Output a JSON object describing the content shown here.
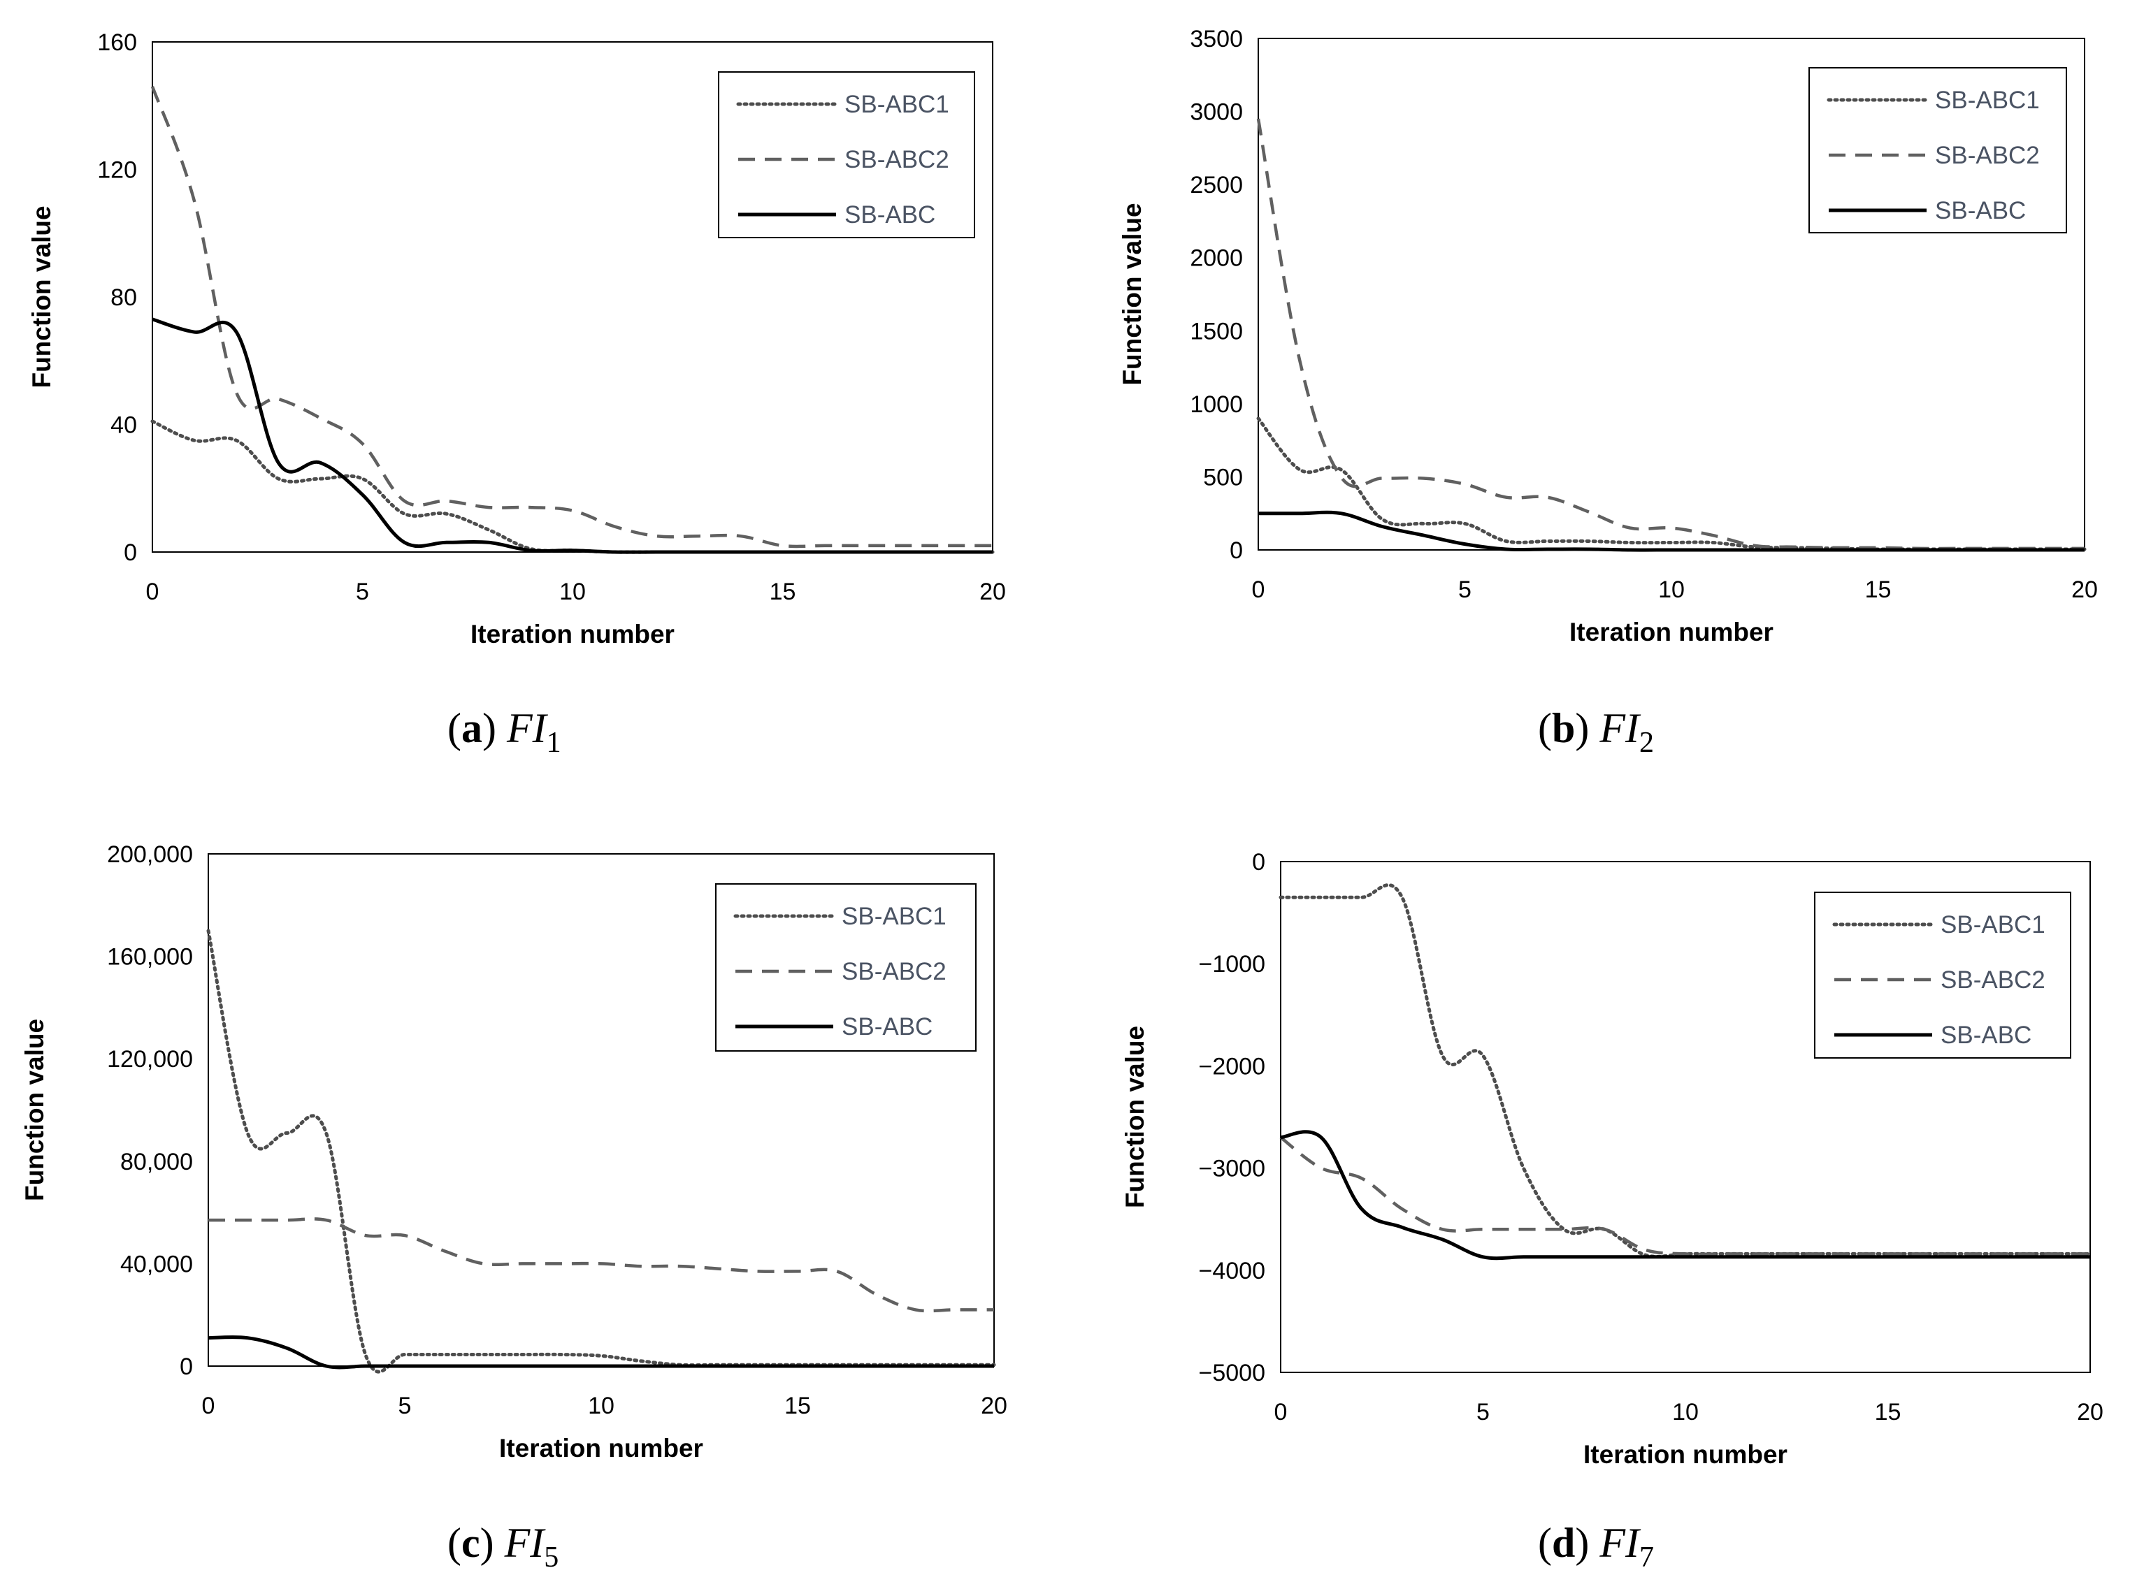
{
  "series_styles": {
    "SB-ABC1": {
      "color": "#4d4d4d",
      "dash": "dotted"
    },
    "SB-ABC2": {
      "color": "#606060",
      "dash": "dashed"
    },
    "SB-ABC": {
      "color": "#000000",
      "dash": "solid"
    }
  },
  "chart_data": [
    {
      "type": "line",
      "caption": {
        "letter": "a",
        "fn": "FI",
        "sub": "1"
      },
      "xlabel": "Iteration number",
      "ylabel": "Function value",
      "xlim": [
        0,
        20
      ],
      "ylim": [
        0,
        160
      ],
      "xticks": [
        0,
        5,
        10,
        15,
        20
      ],
      "xtick_labels": [
        "0",
        "5",
        "10",
        "15",
        "20"
      ],
      "yticks": [
        0,
        40,
        80,
        120,
        160
      ],
      "ytick_labels": [
        "0",
        "40",
        "80",
        "120",
        "160"
      ],
      "legend": [
        "SB-ABC1",
        "SB-ABC2",
        "SB-ABC"
      ],
      "legend_position": "top-right",
      "series": [
        {
          "name": "SB-ABC1",
          "x": [
            0,
            1,
            2,
            3,
            4,
            5,
            6,
            7,
            8,
            9,
            10,
            11,
            12,
            13,
            14,
            15,
            16,
            17,
            18,
            19,
            20
          ],
          "values": [
            41,
            35,
            35,
            23,
            23,
            23,
            12,
            12,
            7,
            1,
            0.5,
            0,
            0,
            0,
            0,
            0,
            0,
            0,
            0,
            0,
            0
          ]
        },
        {
          "name": "SB-ABC2",
          "x": [
            0,
            1,
            2,
            3,
            4,
            5,
            6,
            7,
            8,
            9,
            10,
            11,
            12,
            13,
            14,
            15,
            16,
            17,
            18,
            19,
            20
          ],
          "values": [
            146,
            110,
            50,
            48,
            42,
            34,
            16,
            16,
            14,
            14,
            13,
            8,
            5,
            5,
            5,
            2,
            2,
            2,
            2,
            2,
            2
          ]
        },
        {
          "name": "SB-ABC",
          "x": [
            0,
            1,
            2,
            3,
            4,
            5,
            6,
            7,
            8,
            9,
            10,
            11,
            12,
            13,
            14,
            15,
            16,
            17,
            18,
            19,
            20
          ],
          "values": [
            73,
            69,
            69,
            28,
            28,
            18,
            3,
            3,
            3,
            0.5,
            0.5,
            0,
            0,
            0,
            0,
            0,
            0,
            0,
            0,
            0,
            0
          ]
        }
      ]
    },
    {
      "type": "line",
      "caption": {
        "letter": "b",
        "fn": "FI",
        "sub": "2"
      },
      "xlabel": "Iteration number",
      "ylabel": "Function value",
      "xlim": [
        0,
        20
      ],
      "ylim": [
        0,
        3500
      ],
      "xticks": [
        0,
        5,
        10,
        15,
        20
      ],
      "xtick_labels": [
        "0",
        "5",
        "10",
        "15",
        "20"
      ],
      "yticks": [
        0,
        500,
        1000,
        1500,
        2000,
        2500,
        3000,
        3500
      ],
      "ytick_labels": [
        "0",
        "500",
        "1000",
        "1500",
        "2000",
        "2500",
        "3000",
        "3500"
      ],
      "legend": [
        "SB-ABC1",
        "SB-ABC2",
        "SB-ABC"
      ],
      "legend_position": "top-right",
      "series": [
        {
          "name": "SB-ABC1",
          "x": [
            0,
            1,
            2,
            3,
            4,
            5,
            6,
            7,
            8,
            9,
            10,
            11,
            12,
            13,
            14,
            15,
            16,
            17,
            18,
            19,
            20
          ],
          "values": [
            900,
            550,
            550,
            210,
            180,
            180,
            60,
            60,
            60,
            50,
            50,
            50,
            20,
            15,
            10,
            5,
            5,
            5,
            5,
            5,
            5
          ]
        },
        {
          "name": "SB-ABC2",
          "x": [
            0,
            1,
            2,
            3,
            4,
            5,
            6,
            7,
            8,
            9,
            10,
            11,
            12,
            13,
            14,
            15,
            16,
            17,
            18,
            19,
            20
          ],
          "values": [
            2950,
            1300,
            500,
            490,
            490,
            450,
            360,
            360,
            260,
            150,
            150,
            100,
            30,
            20,
            15,
            15,
            10,
            10,
            10,
            10,
            10
          ]
        },
        {
          "name": "SB-ABC",
          "x": [
            0,
            1,
            2,
            3,
            4,
            5,
            6,
            7,
            8,
            9,
            10,
            11,
            12,
            13,
            14,
            15,
            16,
            17,
            18,
            19,
            20
          ],
          "values": [
            250,
            250,
            250,
            160,
            100,
            40,
            5,
            5,
            5,
            0,
            0,
            0,
            0,
            0,
            0,
            0,
            0,
            0,
            0,
            0,
            0
          ]
        }
      ]
    },
    {
      "type": "line",
      "caption": {
        "letter": "c",
        "fn": "FI",
        "sub": "5"
      },
      "xlabel": "Iteration number",
      "ylabel": "Function value",
      "xlim": [
        0,
        20
      ],
      "ylim": [
        0,
        200000
      ],
      "xticks": [
        0,
        5,
        10,
        15,
        20
      ],
      "xtick_labels": [
        "0",
        "5",
        "10",
        "15",
        "20"
      ],
      "yticks": [
        0,
        40000,
        80000,
        120000,
        160000,
        200000
      ],
      "ytick_labels": [
        "0",
        "40,000",
        "80,000",
        "120,000",
        "160,000",
        "200,000"
      ],
      "legend": [
        "SB-ABC1",
        "SB-ABC2",
        "SB-ABC"
      ],
      "legend_position": "top-right",
      "series": [
        {
          "name": "SB-ABC1",
          "x": [
            0,
            1,
            2,
            3,
            4,
            5,
            6,
            7,
            8,
            9,
            10,
            11,
            12,
            13,
            14,
            15,
            16,
            17,
            18,
            19,
            20
          ],
          "values": [
            170000,
            91000,
            91000,
            91000,
            4500,
            4500,
            4500,
            4500,
            4500,
            4500,
            4000,
            2000,
            500,
            500,
            500,
            500,
            500,
            500,
            500,
            500,
            500
          ]
        },
        {
          "name": "SB-ABC2",
          "x": [
            0,
            1,
            2,
            3,
            4,
            5,
            6,
            7,
            8,
            9,
            10,
            11,
            12,
            13,
            14,
            15,
            16,
            17,
            18,
            19,
            20
          ],
          "values": [
            57000,
            57000,
            57000,
            57000,
            51000,
            51000,
            45000,
            40000,
            40000,
            40000,
            40000,
            39000,
            39000,
            38000,
            37000,
            37000,
            37000,
            28000,
            22000,
            22000,
            22000
          ]
        },
        {
          "name": "SB-ABC",
          "x": [
            0,
            1,
            2,
            3,
            4,
            5,
            6,
            7,
            8,
            9,
            10,
            11,
            12,
            13,
            14,
            15,
            16,
            17,
            18,
            19,
            20
          ],
          "values": [
            11000,
            11000,
            7000,
            0,
            0,
            0,
            0,
            0,
            0,
            0,
            0,
            0,
            0,
            0,
            0,
            0,
            0,
            0,
            0,
            0,
            0
          ]
        }
      ]
    },
    {
      "type": "line",
      "caption": {
        "letter": "d",
        "fn": "FI",
        "sub": "7"
      },
      "xlabel": "Iteration number",
      "ylabel": "Function value",
      "xlim": [
        0,
        20
      ],
      "ylim": [
        -5000,
        0
      ],
      "xticks": [
        0,
        5,
        10,
        15,
        20
      ],
      "xtick_labels": [
        "0",
        "5",
        "10",
        "15",
        "20"
      ],
      "yticks": [
        -5000,
        -4000,
        -3000,
        -2000,
        -1000,
        0
      ],
      "ytick_labels": [
        "−5000",
        "−4000",
        "−3000",
        "−2000",
        "−1000",
        "0"
      ],
      "legend": [
        "SB-ABC1",
        "SB-ABC2",
        "SB-ABC"
      ],
      "legend_position": "top-right",
      "series": [
        {
          "name": "SB-ABC1",
          "x": [
            0,
            1,
            2,
            3,
            4,
            5,
            6,
            7,
            8,
            9,
            10,
            11,
            12,
            13,
            14,
            15,
            16,
            17,
            18,
            19,
            20
          ],
          "values": [
            -350,
            -350,
            -350,
            -350,
            -1900,
            -1900,
            -3000,
            -3600,
            -3600,
            -3850,
            -3840,
            -3840,
            -3840,
            -3840,
            -3840,
            -3840,
            -3840,
            -3840,
            -3840,
            -3840,
            -3840
          ]
        },
        {
          "name": "SB-ABC2",
          "x": [
            0,
            1,
            2,
            3,
            4,
            5,
            6,
            7,
            8,
            9,
            10,
            11,
            12,
            13,
            14,
            15,
            16,
            17,
            18,
            19,
            20
          ],
          "values": [
            -2700,
            -3000,
            -3100,
            -3400,
            -3600,
            -3600,
            -3600,
            -3600,
            -3600,
            -3800,
            -3840,
            -3840,
            -3840,
            -3840,
            -3840,
            -3840,
            -3840,
            -3840,
            -3840,
            -3840,
            -3840
          ]
        },
        {
          "name": "SB-ABC",
          "x": [
            0,
            1,
            2,
            3,
            4,
            5,
            6,
            7,
            8,
            9,
            10,
            11,
            12,
            13,
            14,
            15,
            16,
            17,
            18,
            19,
            20
          ],
          "values": [
            -2700,
            -2700,
            -3400,
            -3580,
            -3700,
            -3870,
            -3870,
            -3870,
            -3870,
            -3870,
            -3870,
            -3870,
            -3870,
            -3870,
            -3870,
            -3870,
            -3870,
            -3870,
            -3870,
            -3870,
            -3870
          ]
        }
      ]
    }
  ]
}
